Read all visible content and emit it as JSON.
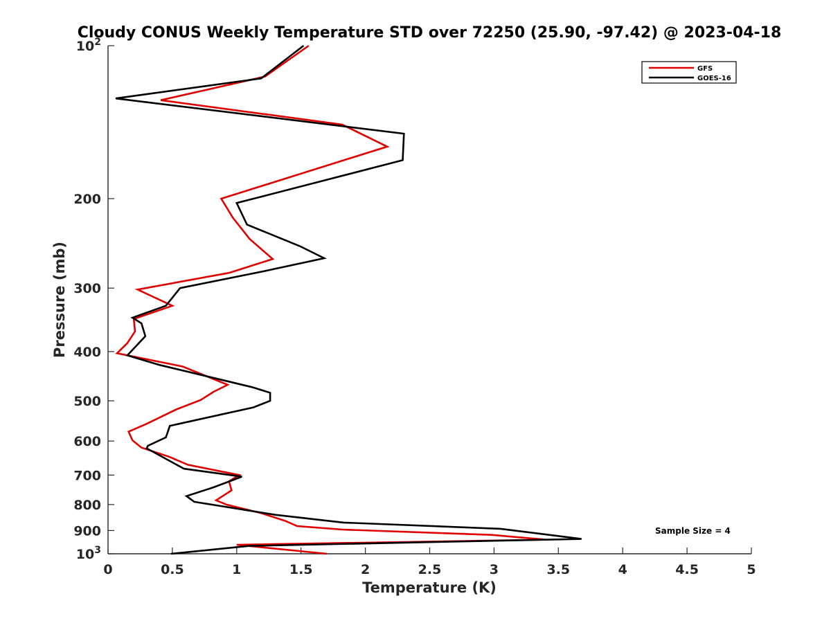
{
  "chart_data": {
    "type": "line",
    "title": "Cloudy CONUS Weekly Temperature STD over 72250 (25.90, -97.42) @ 2023-04-18",
    "xlabel": "Temperature (K)",
    "ylabel": "Pressure (mb)",
    "xlim": [
      0,
      5
    ],
    "ylim": [
      100,
      1000
    ],
    "y_scale": "log",
    "y_reversed": true,
    "x_ticks": [
      0,
      0.5,
      1,
      1.5,
      2,
      2.5,
      3,
      3.5,
      4,
      4.5,
      5
    ],
    "x_tick_labels": [
      "0",
      "0.5",
      "1",
      "1.5",
      "2",
      "2.5",
      "3",
      "3.5",
      "4",
      "4.5",
      "5"
    ],
    "y_ticks": [
      100,
      200,
      300,
      400,
      500,
      600,
      700,
      800,
      900,
      1000
    ],
    "y_tick_labels": [
      {
        "base": "10",
        "exp": "2"
      },
      {
        "base": "200",
        "exp": ""
      },
      {
        "base": "300",
        "exp": ""
      },
      {
        "base": "400",
        "exp": ""
      },
      {
        "base": "500",
        "exp": ""
      },
      {
        "base": "600",
        "exp": ""
      },
      {
        "base": "700",
        "exp": ""
      },
      {
        "base": "800",
        "exp": ""
      },
      {
        "base": "900",
        "exp": ""
      },
      {
        "base": "10",
        "exp": "3"
      }
    ],
    "grid": false,
    "legend_position": "top-right",
    "annotation": "Sample Size = 4",
    "series": [
      {
        "name": "GFS",
        "color": "#e00000",
        "points": [
          [
            1.56,
            100
          ],
          [
            1.22,
            115
          ],
          [
            0.41,
            128
          ],
          [
            1.82,
            143
          ],
          [
            2.17,
            158
          ],
          [
            0.88,
            200
          ],
          [
            0.97,
            218
          ],
          [
            1.1,
            240
          ],
          [
            1.28,
            263
          ],
          [
            0.94,
            280
          ],
          [
            0.23,
            302
          ],
          [
            0.5,
            325
          ],
          [
            0.2,
            345
          ],
          [
            0.21,
            365
          ],
          [
            0.15,
            385
          ],
          [
            0.07,
            403
          ],
          [
            0.58,
            428
          ],
          [
            0.93,
            465
          ],
          [
            0.82,
            480
          ],
          [
            0.72,
            498
          ],
          [
            0.53,
            520
          ],
          [
            0.3,
            555
          ],
          [
            0.16,
            575
          ],
          [
            0.19,
            598
          ],
          [
            0.26,
            618
          ],
          [
            0.48,
            645
          ],
          [
            0.62,
            668
          ],
          [
            1.02,
            700
          ],
          [
            0.94,
            720
          ],
          [
            0.96,
            750
          ],
          [
            0.84,
            785
          ],
          [
            0.92,
            800
          ],
          [
            1.2,
            833
          ],
          [
            1.38,
            862
          ],
          [
            1.47,
            882
          ],
          [
            1.82,
            896
          ],
          [
            2.98,
            918
          ],
          [
            3.4,
            938
          ],
          [
            1.0,
            960
          ],
          [
            1.7,
            1000
          ]
        ]
      },
      {
        "name": "GOES-16",
        "color": "#000000",
        "points": [
          [
            1.52,
            100
          ],
          [
            1.19,
            116
          ],
          [
            0.06,
            127
          ],
          [
            2.3,
            149
          ],
          [
            2.29,
            168
          ],
          [
            1.0,
            204
          ],
          [
            1.08,
            225
          ],
          [
            1.49,
            248
          ],
          [
            1.68,
            262
          ],
          [
            1.21,
            278
          ],
          [
            0.56,
            300
          ],
          [
            0.45,
            325
          ],
          [
            0.19,
            343
          ],
          [
            0.26,
            352
          ],
          [
            0.29,
            373
          ],
          [
            0.15,
            407
          ],
          [
            0.4,
            425
          ],
          [
            1.12,
            470
          ],
          [
            1.26,
            482
          ],
          [
            1.26,
            500
          ],
          [
            1.13,
            515
          ],
          [
            0.48,
            560
          ],
          [
            0.45,
            590
          ],
          [
            0.31,
            613
          ],
          [
            0.3,
            620
          ],
          [
            0.59,
            680
          ],
          [
            1.04,
            705
          ],
          [
            0.82,
            740
          ],
          [
            0.61,
            770
          ],
          [
            0.67,
            790
          ],
          [
            1.3,
            838
          ],
          [
            1.83,
            868
          ],
          [
            3.05,
            893
          ],
          [
            3.68,
            935
          ],
          [
            1.1,
            965
          ],
          [
            0.49,
            1000
          ]
        ]
      }
    ]
  }
}
